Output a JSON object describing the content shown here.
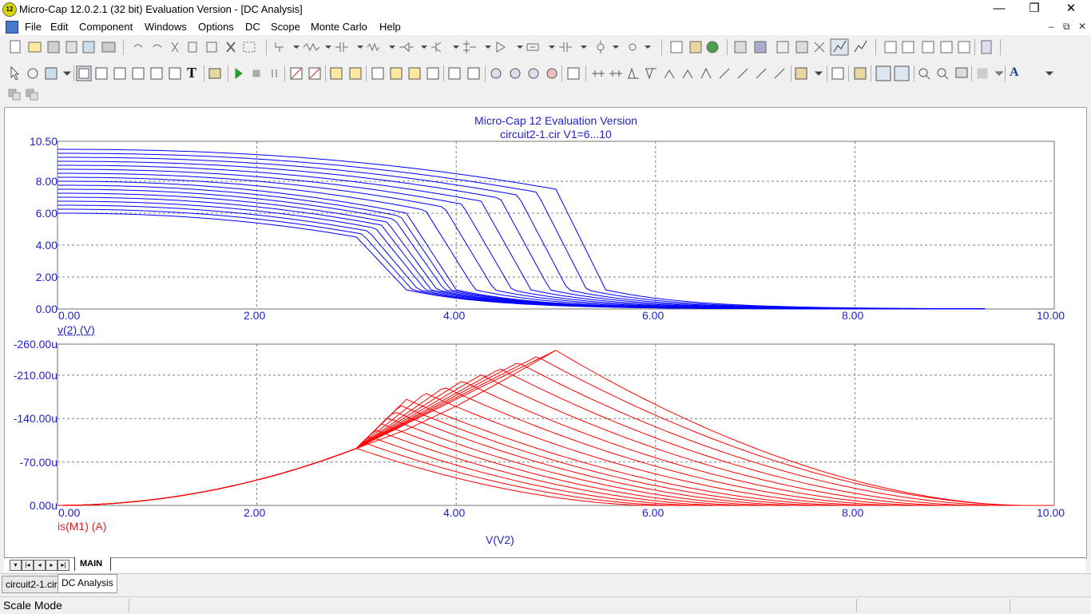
{
  "window": {
    "title": "Micro-Cap 12.0.2.1 (32 bit) Evaluation Version - [DC Analysis]",
    "app_icon_text": "12",
    "controls": [
      "—",
      "❐",
      "✕"
    ],
    "mdi_controls": [
      "–",
      "⧉",
      "✕"
    ]
  },
  "menu": [
    "File",
    "Edit",
    "Component",
    "Windows",
    "Options",
    "DC",
    "Scope",
    "Monte Carlo",
    "Help"
  ],
  "toolbar_text_icon": "T",
  "toolbar_font_icon": "A",
  "plot": {
    "title_line1": "Micro-Cap 12 Evaluation Version",
    "title_line2": "circuit2-1.cir V1=6...10",
    "xlabel": "V(V2)",
    "x_ticks": [
      "0.00",
      "2.00",
      "4.00",
      "6.00",
      "8.00",
      "10.00"
    ],
    "colors": {
      "top": "#0000ff",
      "bottom": "#ff0000",
      "axis_text": "#1f1fc8",
      "grid": "#808080"
    }
  },
  "chart_data": [
    {
      "type": "line",
      "ylabel": "v(2) (V)",
      "xlim": [
        0,
        10
      ],
      "ylim": [
        0,
        10.5
      ],
      "y_ticks": [
        "10.50",
        "8.00",
        "6.00",
        "4.00",
        "2.00",
        "0.00"
      ],
      "note_series": "Parameter sweep V1 = 6...10 (17 curves)",
      "sweep_V1": [
        6.0,
        6.25,
        6.5,
        6.75,
        7.0,
        7.25,
        7.5,
        7.75,
        8.0,
        8.25,
        8.5,
        8.75,
        9.0,
        9.25,
        9.5,
        9.75,
        10.0
      ],
      "threshold_x": [
        3.0,
        3.06,
        3.12,
        3.19,
        3.25,
        3.31,
        3.38,
        3.44,
        3.5,
        3.69,
        3.88,
        4.06,
        4.25,
        4.44,
        4.62,
        4.81,
        5.0
      ]
    },
    {
      "type": "line",
      "ylabel": "is(M1) (A)",
      "xlim": [
        0,
        10
      ],
      "ylim": [
        0,
        -260
      ],
      "y_ticks": [
        "-260.00u",
        "-210.00u",
        "-140.00u",
        "-70.00u",
        "0.00u"
      ],
      "peak_points": [
        {
          "x": 3.0,
          "y": -92
        },
        {
          "x": 3.5,
          "y": -122
        },
        {
          "x": 4.0,
          "y": -160
        },
        {
          "x": 4.5,
          "y": -204
        },
        {
          "x": 5.0,
          "y": -250
        }
      ]
    }
  ],
  "tabs": {
    "sheet": "MAIN",
    "doc_tabs": [
      "circuit2-1.cir",
      "DC Analysis"
    ]
  },
  "status": {
    "mode": "Scale Mode"
  }
}
